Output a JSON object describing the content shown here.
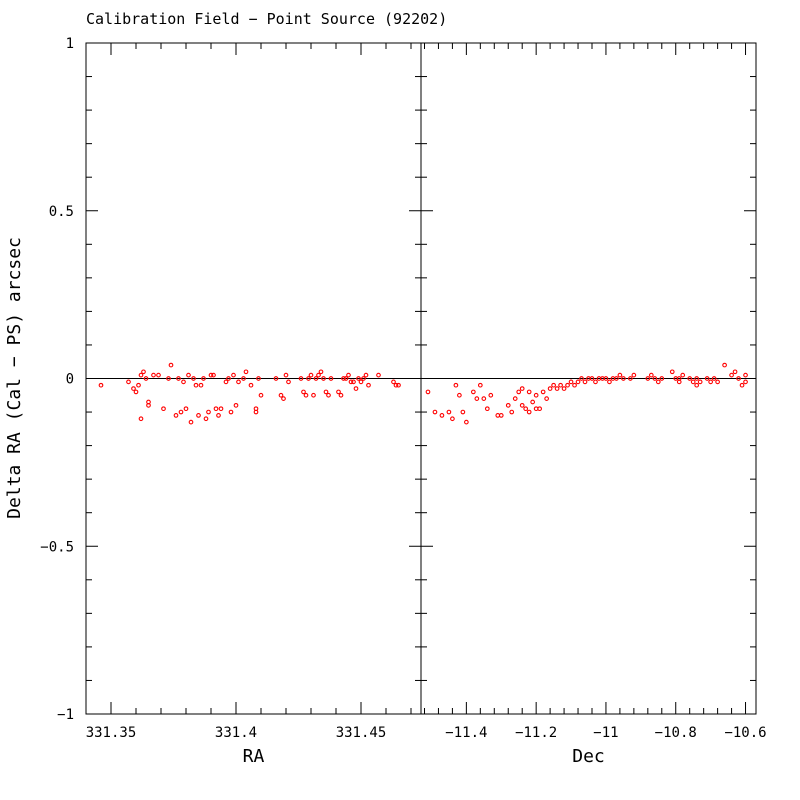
{
  "chart_data": {
    "type": "scatter",
    "title": "Calibration Field − Point Source (92202)",
    "ylabel": "Delta RA (Cal − PS) arcsec",
    "ylim": [
      -1,
      1
    ],
    "y_ticks": [
      -1,
      -0.5,
      0,
      0.5,
      1
    ],
    "y_tick_labels": [
      "−1",
      "−0.5",
      "0",
      "0.5",
      "1"
    ],
    "grid": false,
    "point_color": "#ff0000",
    "panels": [
      {
        "xlabel": "RA",
        "xlim": [
          331.34,
          331.474
        ],
        "x_ticks": [
          331.35,
          331.4,
          331.45
        ],
        "x_tick_labels": [
          "331.35",
          "331.4",
          "331.45"
        ],
        "points": [
          [
            331.346,
            -0.02
          ],
          [
            331.357,
            -0.01
          ],
          [
            331.359,
            -0.03
          ],
          [
            331.36,
            -0.04
          ],
          [
            331.361,
            -0.02
          ],
          [
            331.362,
            0.01
          ],
          [
            331.362,
            -0.12
          ],
          [
            331.363,
            0.02
          ],
          [
            331.364,
            0.0
          ],
          [
            331.365,
            -0.08
          ],
          [
            331.365,
            -0.07
          ],
          [
            331.367,
            0.01
          ],
          [
            331.369,
            0.01
          ],
          [
            331.371,
            -0.09
          ],
          [
            331.373,
            0.0
          ],
          [
            331.374,
            0.04
          ],
          [
            331.376,
            -0.11
          ],
          [
            331.377,
            0.0
          ],
          [
            331.378,
            -0.1
          ],
          [
            331.379,
            -0.01
          ],
          [
            331.38,
            -0.09
          ],
          [
            331.381,
            0.01
          ],
          [
            331.382,
            -0.13
          ],
          [
            331.383,
            0.0
          ],
          [
            331.384,
            -0.02
          ],
          [
            331.385,
            -0.11
          ],
          [
            331.386,
            -0.02
          ],
          [
            331.387,
            0.0
          ],
          [
            331.388,
            -0.12
          ],
          [
            331.389,
            -0.1
          ],
          [
            331.39,
            0.01
          ],
          [
            331.391,
            0.01
          ],
          [
            331.392,
            -0.09
          ],
          [
            331.393,
            -0.11
          ],
          [
            331.394,
            -0.09
          ],
          [
            331.396,
            -0.01
          ],
          [
            331.397,
            0.0
          ],
          [
            331.398,
            -0.1
          ],
          [
            331.399,
            0.01
          ],
          [
            331.4,
            -0.08
          ],
          [
            331.401,
            -0.01
          ],
          [
            331.403,
            0.0
          ],
          [
            331.404,
            0.02
          ],
          [
            331.406,
            -0.02
          ],
          [
            331.408,
            -0.1
          ],
          [
            331.408,
            -0.09
          ],
          [
            331.409,
            0.0
          ],
          [
            331.41,
            -0.05
          ],
          [
            331.416,
            0.0
          ],
          [
            331.418,
            -0.05
          ],
          [
            331.419,
            -0.06
          ],
          [
            331.42,
            0.01
          ],
          [
            331.421,
            -0.01
          ],
          [
            331.426,
            0.0
          ],
          [
            331.427,
            -0.04
          ],
          [
            331.428,
            -0.05
          ],
          [
            331.429,
            0.0
          ],
          [
            331.43,
            0.01
          ],
          [
            331.431,
            -0.05
          ],
          [
            331.432,
            0.0
          ],
          [
            331.433,
            0.01
          ],
          [
            331.434,
            0.02
          ],
          [
            331.435,
            0.0
          ],
          [
            331.436,
            -0.04
          ],
          [
            331.437,
            -0.05
          ],
          [
            331.438,
            0.0
          ],
          [
            331.441,
            -0.04
          ],
          [
            331.442,
            -0.05
          ],
          [
            331.443,
            0.0
          ],
          [
            331.444,
            0.0
          ],
          [
            331.445,
            0.01
          ],
          [
            331.446,
            -0.01
          ],
          [
            331.447,
            -0.01
          ],
          [
            331.448,
            -0.03
          ],
          [
            331.449,
            0.0
          ],
          [
            331.45,
            -0.01
          ],
          [
            331.451,
            0.0
          ],
          [
            331.452,
            0.01
          ],
          [
            331.453,
            -0.02
          ],
          [
            331.457,
            0.01
          ],
          [
            331.463,
            -0.01
          ],
          [
            331.464,
            -0.02
          ],
          [
            331.465,
            -0.02
          ]
        ]
      },
      {
        "xlabel": "Dec",
        "xlim": [
          -11.53,
          -10.57
        ],
        "x_ticks": [
          -11.4,
          -11.2,
          -11,
          -10.8,
          -10.6
        ],
        "x_tick_labels": [
          "−11.4",
          "−11.2",
          "−11",
          "−10.8",
          "−10.6"
        ],
        "points": [
          [
            -11.51,
            -0.04
          ],
          [
            -11.49,
            -0.1
          ],
          [
            -11.47,
            -0.11
          ],
          [
            -11.45,
            -0.1
          ],
          [
            -11.44,
            -0.12
          ],
          [
            -11.43,
            -0.02
          ],
          [
            -11.42,
            -0.05
          ],
          [
            -11.41,
            -0.1
          ],
          [
            -11.4,
            -0.13
          ],
          [
            -11.38,
            -0.04
          ],
          [
            -11.37,
            -0.06
          ],
          [
            -11.36,
            -0.02
          ],
          [
            -11.35,
            -0.06
          ],
          [
            -11.34,
            -0.09
          ],
          [
            -11.33,
            -0.05
          ],
          [
            -11.31,
            -0.11
          ],
          [
            -11.3,
            -0.11
          ],
          [
            -11.28,
            -0.08
          ],
          [
            -11.27,
            -0.1
          ],
          [
            -11.26,
            -0.06
          ],
          [
            -11.25,
            -0.04
          ],
          [
            -11.24,
            -0.08
          ],
          [
            -11.24,
            -0.03
          ],
          [
            -11.23,
            -0.09
          ],
          [
            -11.22,
            -0.1
          ],
          [
            -11.22,
            -0.04
          ],
          [
            -11.21,
            -0.07
          ],
          [
            -11.2,
            -0.05
          ],
          [
            -11.2,
            -0.09
          ],
          [
            -11.19,
            -0.09
          ],
          [
            -11.18,
            -0.04
          ],
          [
            -11.17,
            -0.06
          ],
          [
            -11.16,
            -0.03
          ],
          [
            -11.15,
            -0.02
          ],
          [
            -11.14,
            -0.03
          ],
          [
            -11.13,
            -0.02
          ],
          [
            -11.12,
            -0.03
          ],
          [
            -11.11,
            -0.02
          ],
          [
            -11.1,
            -0.01
          ],
          [
            -11.09,
            -0.02
          ],
          [
            -11.08,
            -0.01
          ],
          [
            -11.07,
            0.0
          ],
          [
            -11.06,
            -0.01
          ],
          [
            -11.05,
            0.0
          ],
          [
            -11.04,
            0.0
          ],
          [
            -11.03,
            -0.01
          ],
          [
            -11.02,
            0.0
          ],
          [
            -11.01,
            0.0
          ],
          [
            -11.0,
            0.0
          ],
          [
            -10.99,
            -0.01
          ],
          [
            -10.98,
            0.0
          ],
          [
            -10.97,
            0.0
          ],
          [
            -10.96,
            0.01
          ],
          [
            -10.95,
            0.0
          ],
          [
            -10.93,
            0.0
          ],
          [
            -10.92,
            0.01
          ],
          [
            -10.88,
            0.0
          ],
          [
            -10.87,
            0.01
          ],
          [
            -10.86,
            0.0
          ],
          [
            -10.85,
            -0.01
          ],
          [
            -10.84,
            0.0
          ],
          [
            -10.81,
            0.02
          ],
          [
            -10.8,
            0.0
          ],
          [
            -10.79,
            -0.01
          ],
          [
            -10.79,
            0.0
          ],
          [
            -10.78,
            0.01
          ],
          [
            -10.76,
            0.0
          ],
          [
            -10.75,
            -0.01
          ],
          [
            -10.74,
            -0.02
          ],
          [
            -10.74,
            0.0
          ],
          [
            -10.73,
            -0.01
          ],
          [
            -10.71,
            0.0
          ],
          [
            -10.7,
            -0.01
          ],
          [
            -10.69,
            0.0
          ],
          [
            -10.68,
            -0.01
          ],
          [
            -10.66,
            0.04
          ],
          [
            -10.64,
            0.01
          ],
          [
            -10.63,
            0.02
          ],
          [
            -10.62,
            0.0
          ],
          [
            -10.61,
            -0.02
          ],
          [
            -10.6,
            0.01
          ],
          [
            -10.6,
            -0.01
          ]
        ]
      }
    ]
  }
}
